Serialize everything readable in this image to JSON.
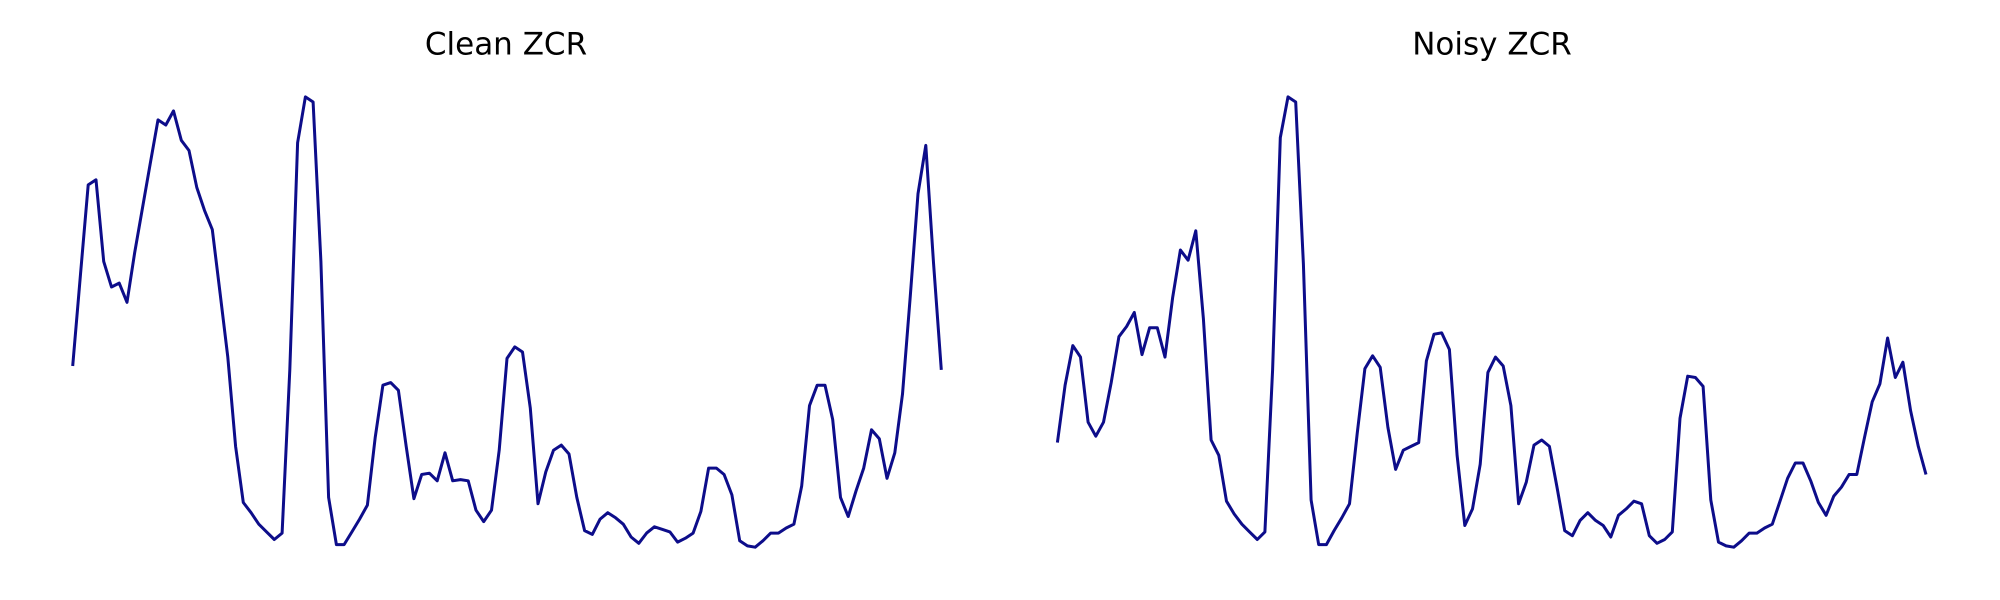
{
  "chart_data": [
    {
      "type": "line",
      "title": "Clean ZCR",
      "color": "#0d0d8a",
      "ylim": [
        0,
        0.4
      ],
      "values": [
        0.173,
        0.245,
        0.315,
        0.319,
        0.255,
        0.235,
        0.238,
        0.223,
        0.262,
        0.297,
        0.332,
        0.366,
        0.362,
        0.373,
        0.35,
        0.342,
        0.313,
        0.295,
        0.28,
        0.23,
        0.18,
        0.11,
        0.066,
        0.058,
        0.049,
        0.043,
        0.037,
        0.042,
        0.17,
        0.348,
        0.384,
        0.38,
        0.255,
        0.07,
        0.033,
        0.033,
        0.043,
        0.053,
        0.064,
        0.117,
        0.158,
        0.16,
        0.154,
        0.11,
        0.069,
        0.088,
        0.089,
        0.083,
        0.105,
        0.083,
        0.084,
        0.083,
        0.06,
        0.051,
        0.06,
        0.107,
        0.179,
        0.188,
        0.184,
        0.14,
        0.065,
        0.09,
        0.107,
        0.111,
        0.104,
        0.07,
        0.044,
        0.041,
        0.053,
        0.058,
        0.054,
        0.049,
        0.039,
        0.034,
        0.042,
        0.047,
        0.045,
        0.043,
        0.035,
        0.038,
        0.042,
        0.059,
        0.093,
        0.093,
        0.088,
        0.072,
        0.036,
        0.032,
        0.031,
        0.036,
        0.042,
        0.042,
        0.046,
        0.049,
        0.079,
        0.142,
        0.158,
        0.158,
        0.131,
        0.07,
        0.055,
        0.075,
        0.093,
        0.123,
        0.116,
        0.085,
        0.105,
        0.151,
        0.228,
        0.308,
        0.346,
        0.254,
        0.17
      ]
    },
    {
      "type": "line",
      "title": "Noisy ZCR",
      "color": "#0d0d8a",
      "ylim": [
        0,
        0.4
      ],
      "values": [
        0.113,
        0.158,
        0.189,
        0.18,
        0.129,
        0.118,
        0.129,
        0.16,
        0.196,
        0.204,
        0.215,
        0.182,
        0.203,
        0.203,
        0.18,
        0.227,
        0.264,
        0.256,
        0.279,
        0.21,
        0.115,
        0.103,
        0.067,
        0.057,
        0.049,
        0.043,
        0.037,
        0.043,
        0.17,
        0.352,
        0.384,
        0.38,
        0.253,
        0.068,
        0.033,
        0.033,
        0.044,
        0.054,
        0.065,
        0.12,
        0.171,
        0.181,
        0.172,
        0.125,
        0.092,
        0.107,
        0.11,
        0.113,
        0.177,
        0.198,
        0.199,
        0.186,
        0.103,
        0.048,
        0.061,
        0.096,
        0.168,
        0.18,
        0.173,
        0.142,
        0.065,
        0.082,
        0.111,
        0.115,
        0.11,
        0.078,
        0.044,
        0.04,
        0.052,
        0.058,
        0.052,
        0.048,
        0.039,
        0.056,
        0.061,
        0.067,
        0.065,
        0.04,
        0.034,
        0.037,
        0.043,
        0.132,
        0.165,
        0.164,
        0.157,
        0.068,
        0.035,
        0.032,
        0.031,
        0.036,
        0.042,
        0.042,
        0.046,
        0.049,
        0.067,
        0.085,
        0.097,
        0.097,
        0.083,
        0.066,
        0.056,
        0.071,
        0.078,
        0.088,
        0.088,
        0.117,
        0.145,
        0.159,
        0.195,
        0.164,
        0.176,
        0.138,
        0.11,
        0.088
      ]
    }
  ]
}
